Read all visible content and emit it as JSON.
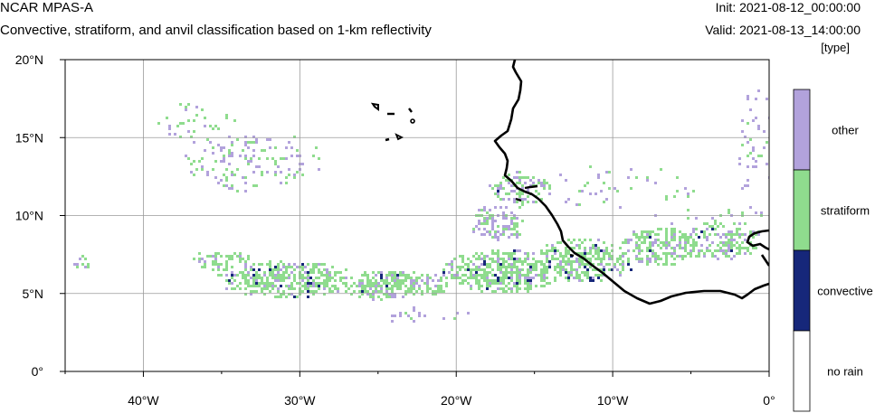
{
  "header": {
    "model": "NCAR MPAS-A",
    "title": "Convective, stratiform, and anvil classification based on 1-km reflectivity",
    "init": "Init: 2021-08-12_00:00:00",
    "valid": "Valid: 2021-08-13_14:00:00",
    "units": "[type]"
  },
  "map": {
    "lon_range": [
      -45,
      0
    ],
    "lat_range": [
      0,
      20
    ],
    "x_ticks": [
      {
        "value": -40,
        "label": "40°W"
      },
      {
        "value": -30,
        "label": "30°W"
      },
      {
        "value": -20,
        "label": "20°W"
      },
      {
        "value": -10,
        "label": "10°W"
      },
      {
        "value": 0,
        "label": "0°"
      }
    ],
    "y_ticks": [
      {
        "value": 0,
        "label": "0°"
      },
      {
        "value": 5,
        "label": "5°N"
      },
      {
        "value": 10,
        "label": "10°N"
      },
      {
        "value": 15,
        "label": "15°N"
      },
      {
        "value": 20,
        "label": "20°N"
      }
    ],
    "grid": true
  },
  "legend": {
    "position": "right",
    "categories": [
      {
        "label": "other",
        "color": "#b2a2dc"
      },
      {
        "label": "stratiform",
        "color": "#8fdc8e"
      },
      {
        "label": "convective",
        "color": "#16277a"
      },
      {
        "label": "no rain",
        "color": "#ffffff"
      }
    ]
  },
  "colors": {
    "other": "#b2a2dc",
    "stratiform": "#8fdc8e",
    "convective": "#16277a",
    "coastline": "#000000",
    "grid": "#9a9a9a"
  }
}
